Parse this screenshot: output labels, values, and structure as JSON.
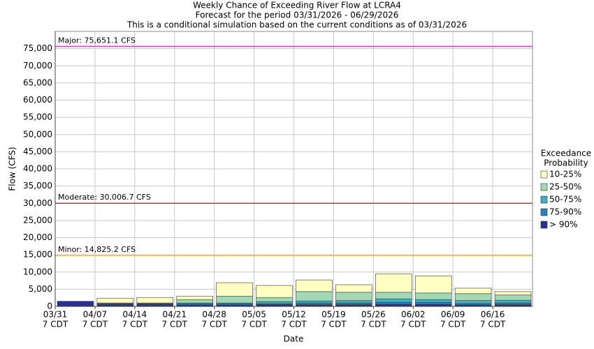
{
  "chart_data": {
    "type": "bar",
    "stacked": true,
    "title": "Weekly Chance of Exceeding River Flow at LCRA4",
    "subtitle": "Forecast for the period 03/31/2026 - 06/29/2026",
    "description": "This is a conditional simulation based on the current conditions as of 03/31/2026",
    "x_label": "Date",
    "y_label": "Flow (CFS)",
    "legend_title": [
      "Exceedance",
      "Probability"
    ],
    "categories": [
      "03/31",
      "04/07",
      "04/14",
      "04/21",
      "04/28",
      "05/05",
      "05/12",
      "05/19",
      "05/26",
      "06/02",
      "06/09",
      "06/16"
    ],
    "category_times": [
      "7 CDT",
      "7 CDT",
      "7 CDT",
      "7 CDT",
      "7 CDT",
      "7 CDT",
      "7 CDT",
      "7 CDT",
      "7 CDT",
      "7 CDT",
      "7 CDT",
      "7 CDT"
    ],
    "series": [
      {
        "name": "> 90%",
        "color": "#283090",
        "values": [
          1500,
          500,
          500,
          400,
          400,
          500,
          500,
          500,
          600,
          600,
          400,
          500
        ]
      },
      {
        "name": "75-90%",
        "color": "#2a7fc0",
        "values": [
          null,
          200,
          200,
          300,
          300,
          300,
          500,
          500,
          600,
          600,
          400,
          500
        ]
      },
      {
        "name": "50-75%",
        "color": "#3fb0c2",
        "values": [
          null,
          100,
          100,
          300,
          300,
          600,
          600,
          700,
          1000,
          800,
          900,
          800
        ]
      },
      {
        "name": "25-50%",
        "color": "#a2d9b4",
        "values": [
          null,
          200,
          200,
          1000,
          2000,
          1200,
          2700,
          2400,
          1900,
          1900,
          2000,
          1500
        ]
      },
      {
        "name": "10-25%",
        "color": "#ffffc4",
        "values": [
          null,
          1400,
          1600,
          1000,
          3900,
          3500,
          3400,
          2200,
          5400,
          5000,
          1600,
          1000
        ]
      }
    ],
    "thresholds": [
      {
        "label": "Major: 75,651.1 CFS",
        "value": 75651.1,
        "color": "#d040d0"
      },
      {
        "label": "Moderate: 30,006.7 CFS",
        "value": 30006.7,
        "color": "#d03030"
      },
      {
        "label": "Minor: 14,825.2 CFS",
        "value": 14825.2,
        "color": "#f0c020"
      }
    ],
    "ylim": [
      0,
      80000
    ],
    "yticks": [
      0,
      {
        "value": 5000,
        "label": "5,000"
      },
      {
        "value": 10000,
        "label": "10,000"
      },
      {
        "value": 15000,
        "label": "15,000"
      },
      {
        "value": 20000,
        "label": "20,000"
      },
      {
        "value": 25000,
        "label": "25,000"
      },
      {
        "value": 30000,
        "label": "30,000"
      },
      {
        "value": 35000,
        "label": "35,000"
      },
      {
        "value": 40000,
        "label": "40,000"
      },
      {
        "value": 45000,
        "label": "45,000"
      },
      {
        "value": 50000,
        "label": "50,000"
      },
      {
        "value": 55000,
        "label": "55,000"
      },
      {
        "value": 60000,
        "label": "60,000"
      },
      {
        "value": 65000,
        "label": "65,000"
      },
      {
        "value": 70000,
        "label": "70,000"
      },
      {
        "value": 75000,
        "label": "75,000"
      }
    ],
    "grid": true
  }
}
